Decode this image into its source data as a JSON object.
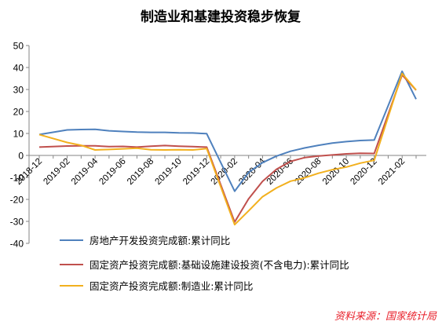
{
  "chart_data": {
    "type": "line",
    "title": "制造业和基建投资稳步恢复",
    "xlabel": "",
    "ylabel": "",
    "ylim": [
      -40,
      50
    ],
    "y_ticks": [
      -40,
      -30,
      -20,
      -10,
      0,
      10,
      20,
      30,
      40,
      50
    ],
    "grid": false,
    "legend_position": "bottom",
    "x": [
      "2018-12",
      "2019-01",
      "2019-02",
      "2019-03",
      "2019-04",
      "2019-05",
      "2019-06",
      "2019-07",
      "2019-08",
      "2019-09",
      "2019-10",
      "2019-11",
      "2019-12",
      "2020-01",
      "2020-02",
      "2020-03",
      "2020-04",
      "2020-05",
      "2020-06",
      "2020-07",
      "2020-08",
      "2020-09",
      "2020-10",
      "2020-11",
      "2020-12",
      "2021-01",
      "2021-02",
      "2021-03"
    ],
    "x_tick_labels": [
      "2018-12",
      "2019-02",
      "2019-04",
      "2019-06",
      "2019-08",
      "2019-10",
      "2019-12",
      "2020-02",
      "2020-04",
      "2020-06",
      "2020-08",
      "2020-10",
      "2020-12",
      "2021-02"
    ],
    "series": [
      {
        "name": "房地产开发投资完成额:累计同比",
        "color": "#4f81bd",
        "values": [
          9.5,
          null,
          11.6,
          11.8,
          11.9,
          11.2,
          10.9,
          10.6,
          10.5,
          10.5,
          10.3,
          10.2,
          9.9,
          null,
          -16.3,
          -7.7,
          -3.3,
          -0.3,
          1.9,
          3.4,
          4.6,
          5.6,
          6.3,
          6.8,
          7.0,
          null,
          38.3,
          25.6
        ]
      },
      {
        "name": "固定资产投资完成额:基础设施建设投资(不含电力):累计同比",
        "color": "#c0504d",
        "values": [
          3.8,
          null,
          4.3,
          4.4,
          4.4,
          4.0,
          4.1,
          3.8,
          4.2,
          4.5,
          4.2,
          4.0,
          3.8,
          null,
          -30.3,
          -19.7,
          -11.8,
          -6.3,
          -2.7,
          -1.0,
          -0.3,
          0.2,
          0.7,
          1.0,
          0.9,
          null,
          36.6,
          29.7
        ]
      },
      {
        "name": "固定资产投资完成额:制造业:累计同比",
        "color": "#f2b01e",
        "values": [
          9.5,
          null,
          5.9,
          4.6,
          2.5,
          2.7,
          3.0,
          3.3,
          2.6,
          2.5,
          2.6,
          2.5,
          3.1,
          null,
          -31.5,
          -25.2,
          -18.8,
          -14.8,
          -11.7,
          -10.2,
          -8.1,
          -6.5,
          -5.3,
          -3.5,
          -2.2,
          null,
          37.3,
          29.8
        ]
      }
    ],
    "source_note": "资料来源：国家统计局"
  }
}
